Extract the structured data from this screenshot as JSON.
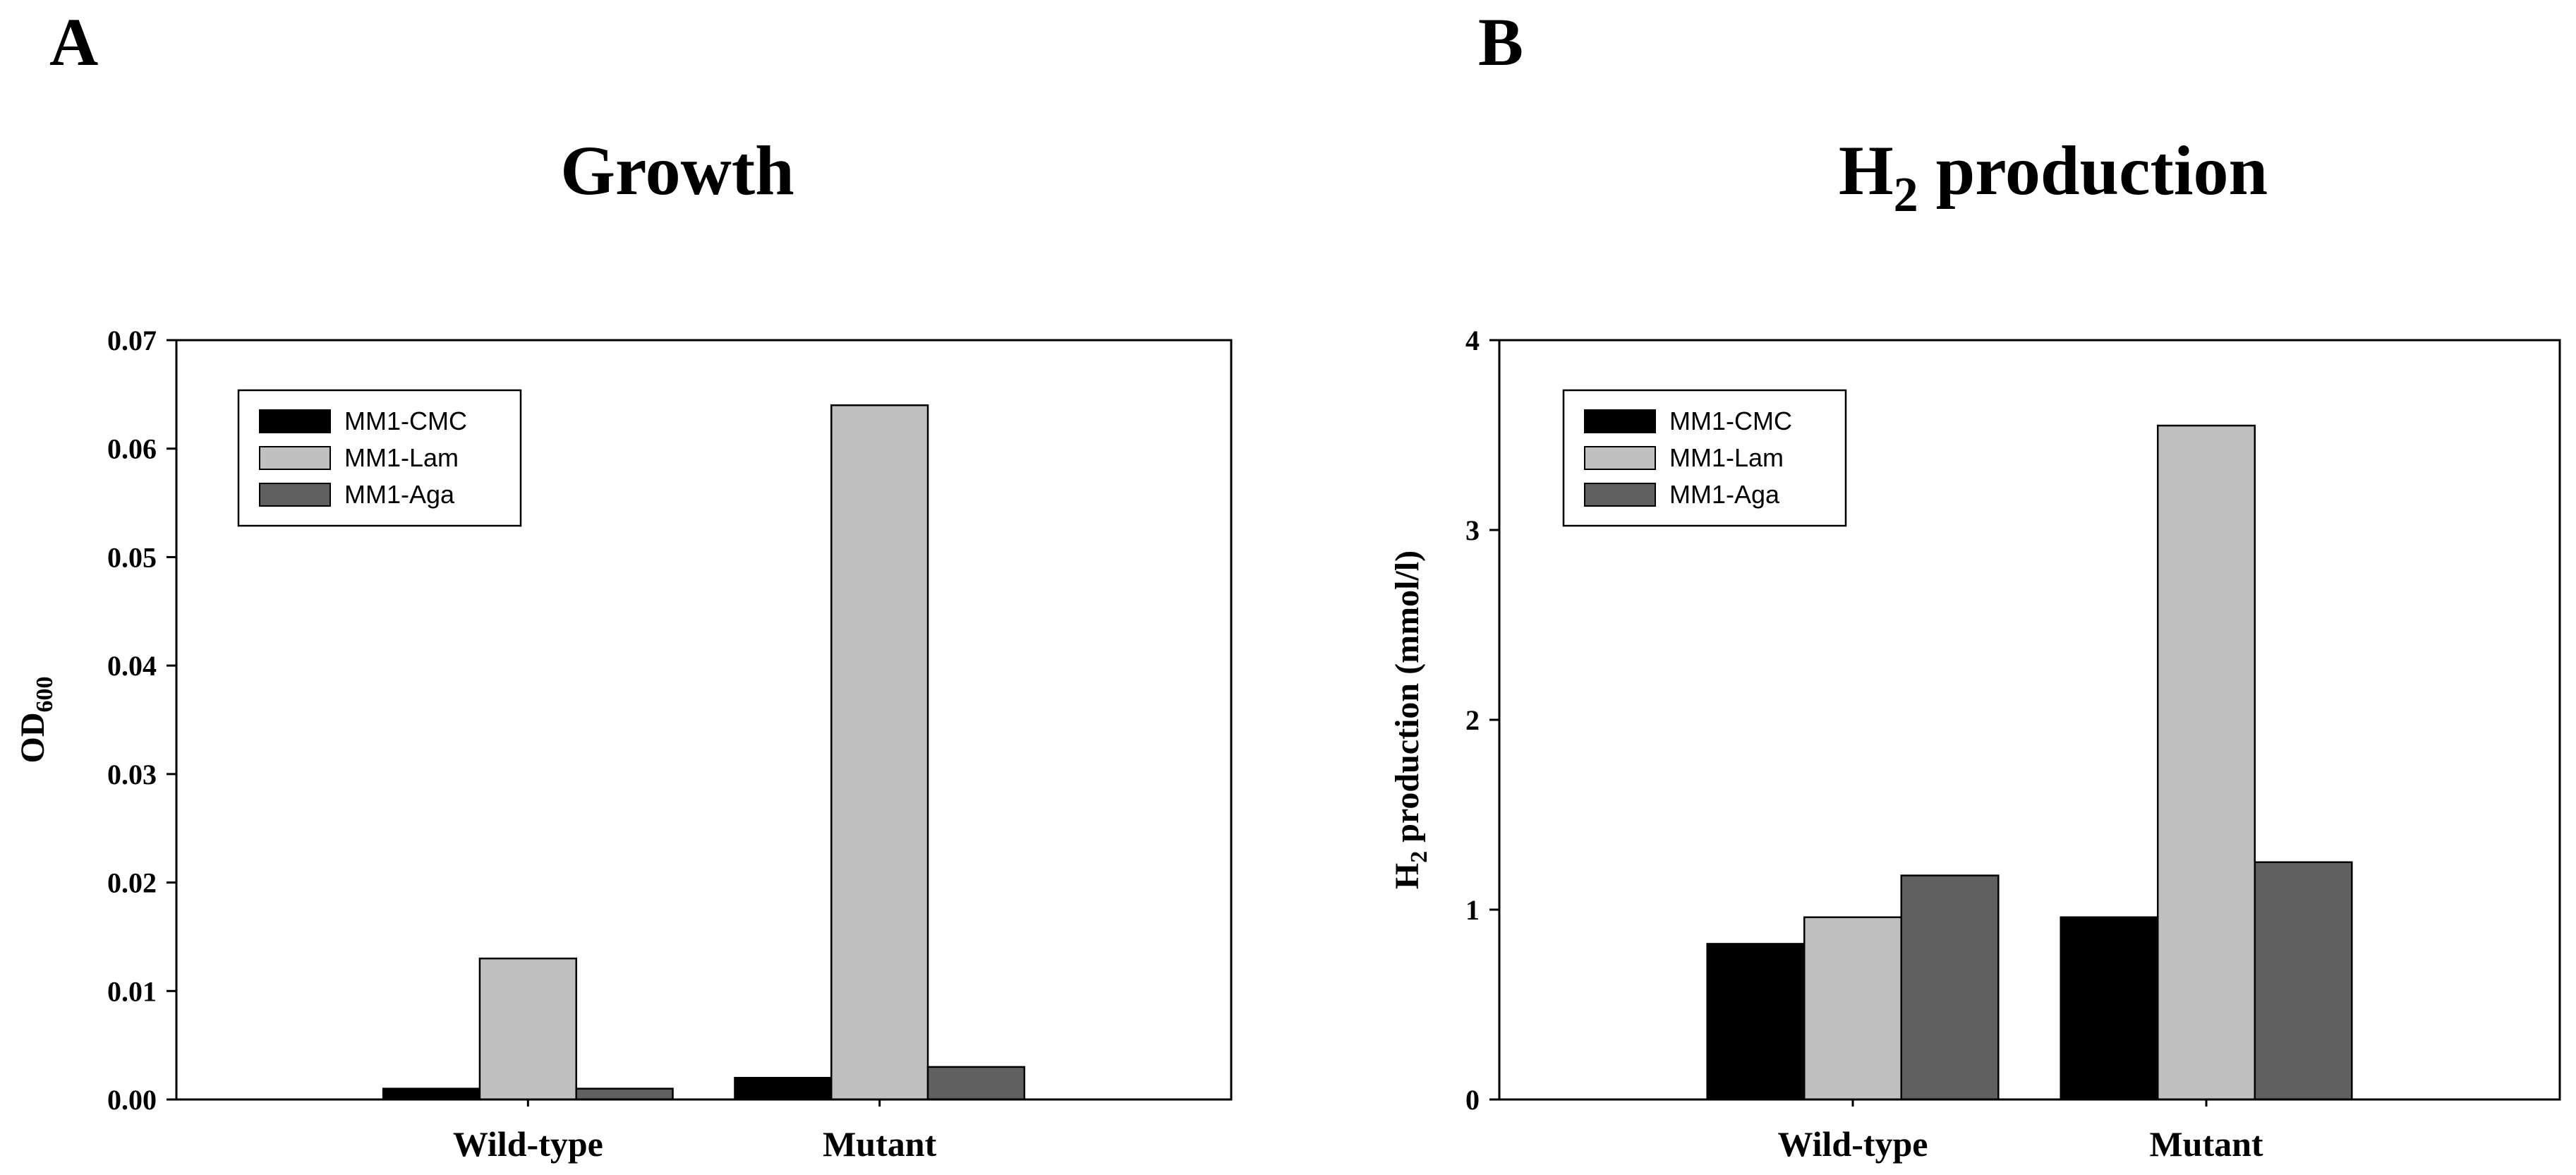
{
  "chart_data": [
    {
      "type": "bar",
      "panel_label": "A",
      "title": "Growth",
      "title_sub": "",
      "title_suffix": "",
      "ylabel": "OD",
      "ylabel_sub": "600",
      "ylabel_suffix": "",
      "xlabel": "",
      "ylim": [
        0,
        0.07
      ],
      "yticks": [
        "0.00",
        "0.01",
        "0.02",
        "0.03",
        "0.04",
        "0.05",
        "0.06",
        "0.07"
      ],
      "categories": [
        "Wild-type",
        "Mutant"
      ],
      "legend_position": "top-left",
      "grid": false,
      "series": [
        {
          "name": "MM1-CMC",
          "color": "#000000",
          "values": [
            0.001,
            0.002
          ]
        },
        {
          "name": "MM1-Lam",
          "color": "#c0c0c0",
          "values": [
            0.013,
            0.064
          ]
        },
        {
          "name": "MM1-Aga",
          "color": "#606060",
          "values": [
            0.001,
            0.003
          ]
        }
      ]
    },
    {
      "type": "bar",
      "panel_label": "B",
      "title": "H",
      "title_sub": "2",
      "title_suffix": " production",
      "ylabel": "H",
      "ylabel_sub": "2",
      "ylabel_suffix": " production (mmol/l)",
      "xlabel": "",
      "ylim": [
        0,
        4
      ],
      "yticks": [
        "0",
        "1",
        "2",
        "3",
        "4"
      ],
      "categories": [
        "Wild-type",
        "Mutant"
      ],
      "legend_position": "top-left",
      "grid": false,
      "series": [
        {
          "name": "MM1-CMC",
          "color": "#000000",
          "values": [
            0.82,
            0.96
          ]
        },
        {
          "name": "MM1-Lam",
          "color": "#c0c0c0",
          "values": [
            0.96,
            3.55
          ]
        },
        {
          "name": "MM1-Aga",
          "color": "#606060",
          "values": [
            1.18,
            1.25
          ]
        }
      ]
    }
  ]
}
